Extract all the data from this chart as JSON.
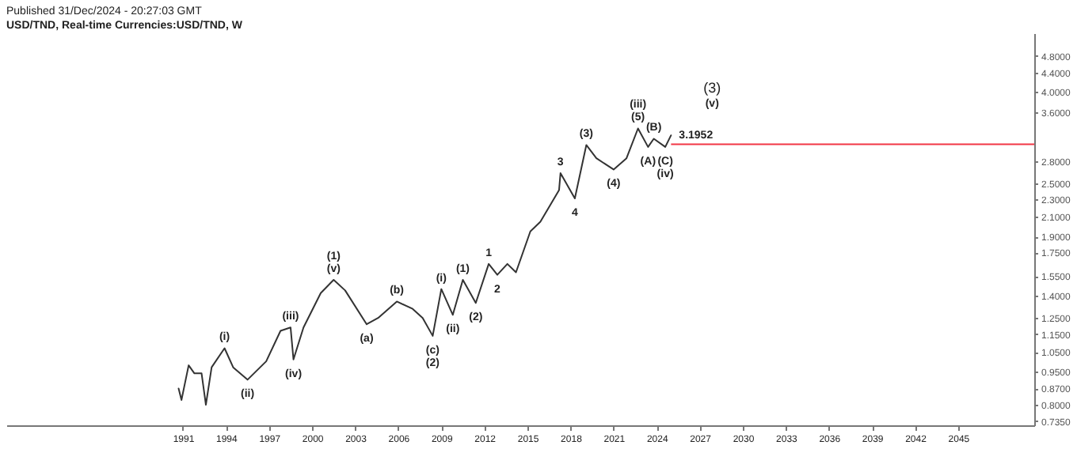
{
  "chart_data": {
    "type": "line",
    "title": "USD/TND, Real-time Currencies:USD/TND, W",
    "x": [
      1990.7,
      1990.9,
      1991.4,
      1991.8,
      1992.3,
      1992.6,
      1993.0,
      1993.9,
      1994.5,
      1995.5,
      1996.8,
      1997.8,
      1998.5,
      1998.7,
      1999.4,
      2000.6,
      2001.5,
      2002.3,
      2003.8,
      2004.6,
      2005.9,
      2007.0,
      2007.7,
      2008.4,
      2009.0,
      2009.8,
      2010.5,
      2011.4,
      2012.3,
      2012.9,
      2013.6,
      2014.2,
      2015.2,
      2015.9,
      2017.2,
      2017.3,
      2018.3,
      2019.1,
      2019.8,
      2021.0,
      2021.9,
      2022.7,
      2023.4,
      2023.8,
      2024.6,
      2025.0
    ],
    "series": [
      {
        "color": "#333333",
        "values": [
          0.87,
          0.82,
          0.98,
          0.94,
          0.94,
          0.8,
          0.97,
          1.07,
          0.97,
          0.91,
          1.0,
          1.17,
          1.19,
          1.01,
          1.19,
          1.42,
          1.52,
          1.44,
          1.21,
          1.25,
          1.36,
          1.31,
          1.25,
          1.14,
          1.45,
          1.27,
          1.52,
          1.35,
          1.65,
          1.56,
          1.65,
          1.58,
          1.95,
          2.05,
          2.41,
          2.63,
          2.31,
          3.04,
          2.84,
          2.68,
          2.84,
          3.31,
          3.01,
          3.14,
          3.01,
          3.1952
        ]
      }
    ],
    "log": true,
    "marker": "none",
    "line_style": "solid",
    "xlim": [
      1978.7,
      2050.3
    ],
    "xticks": [
      1991,
      1994,
      1997,
      2000,
      2003,
      2006,
      2009,
      2012,
      2015,
      2018,
      2021,
      2024,
      2027,
      2030,
      2033,
      2036,
      2039,
      2042,
      2045
    ],
    "ylim": [
      0.72,
      5.4
    ],
    "yticks": [
      {
        "value": 4.8,
        "label": "4.8000"
      },
      {
        "value": 4.4,
        "label": "4.4000"
      },
      {
        "value": 4.0,
        "label": "4.0000"
      },
      {
        "value": 3.6,
        "label": "3.6000"
      },
      {
        "value": 2.8,
        "label": "2.8000"
      },
      {
        "value": 2.5,
        "label": "2.5000"
      },
      {
        "value": 2.3,
        "label": "2.3000"
      },
      {
        "value": 2.1,
        "label": "2.1000"
      },
      {
        "value": 1.9,
        "label": "1.9000"
      },
      {
        "value": 1.75,
        "label": "1.7500"
      },
      {
        "value": 1.55,
        "label": "1.5500"
      },
      {
        "value": 1.4,
        "label": "1.4000"
      },
      {
        "value": 1.25,
        "label": "1.2500"
      },
      {
        "value": 1.15,
        "label": "1.1500"
      },
      {
        "value": 1.05,
        "label": "1.0500"
      },
      {
        "value": 0.95,
        "label": "0.9500"
      },
      {
        "value": 0.87,
        "label": "0.8700"
      },
      {
        "value": 0.8,
        "label": "0.8000"
      },
      {
        "value": 0.735,
        "label": "0.7350"
      }
    ],
    "grid": false,
    "ref_lines": [
      {
        "axis": "y",
        "value": 3.05,
        "color": "#f23645"
      }
    ],
    "annotations": [
      "Published 31/Dec/2024 - 20:27:03 GMT",
      {
        "text": "3.1952",
        "x": 2025.0,
        "y": 3.1952
      },
      {
        "text": "(i)",
        "x": 1993.9,
        "y": 1.07
      },
      {
        "text": "(ii)",
        "x": 1995.5,
        "y": 0.91
      },
      {
        "text": "(iii)",
        "x": 1998.5,
        "y": 1.19
      },
      {
        "text": "(iv)",
        "x": 1998.7,
        "y": 1.01
      },
      {
        "text": "(v)",
        "x": 2001.5,
        "y": 1.52
      },
      {
        "text": "(1)",
        "x": 2001.5,
        "y": 1.52
      },
      {
        "text": "(a)",
        "x": 2003.8,
        "y": 1.21
      },
      {
        "text": "(b)",
        "x": 2005.9,
        "y": 1.36
      },
      {
        "text": "(c)",
        "x": 2008.4,
        "y": 1.14
      },
      {
        "text": "(2)",
        "x": 2008.4,
        "y": 1.14
      },
      {
        "text": "(i)",
        "x": 2009.0,
        "y": 1.45
      },
      {
        "text": "(ii)",
        "x": 2009.8,
        "y": 1.27
      },
      {
        "text": "(1)",
        "x": 2010.5,
        "y": 1.52
      },
      {
        "text": "(2)",
        "x": 2011.4,
        "y": 1.35
      },
      {
        "text": "1",
        "x": 2012.3,
        "y": 1.65
      },
      {
        "text": "2",
        "x": 2012.9,
        "y": 1.56
      },
      {
        "text": "3",
        "x": 2017.3,
        "y": 2.63
      },
      {
        "text": "4",
        "x": 2018.3,
        "y": 2.31
      },
      {
        "text": "(3)",
        "x": 2019.1,
        "y": 3.04
      },
      {
        "text": "(4)",
        "x": 2021.0,
        "y": 2.68
      },
      {
        "text": "(5)",
        "x": 2022.7,
        "y": 3.31
      },
      {
        "text": "(iii)",
        "x": 2022.7,
        "y": 3.31
      },
      {
        "text": "(A)",
        "x": 2023.4,
        "y": 3.01
      },
      {
        "text": "(B)",
        "x": 2023.8,
        "y": 3.14
      },
      {
        "text": "(C)",
        "x": 2024.6,
        "y": 3.01
      },
      {
        "text": "(iv)",
        "x": 2024.6,
        "y": 3.01
      },
      "(3)",
      "(v)"
    ]
  }
}
